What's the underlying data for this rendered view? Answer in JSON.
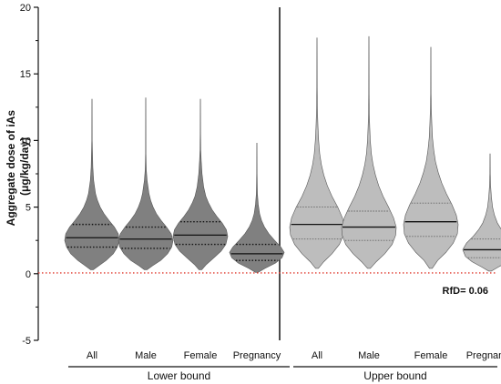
{
  "chart_data": {
    "type": "violin",
    "ylabel_lines": [
      "Aggregate dose of iAs",
      "(μg/kg/day)"
    ],
    "ylim": [
      -5,
      20
    ],
    "yticks": [
      -5,
      0,
      5,
      10,
      15,
      20
    ],
    "reference_line": {
      "y": 0.06,
      "label": "RfD= 0.06",
      "color": "#e03a2f",
      "style": "dotted"
    },
    "groups": [
      {
        "label": "Lower bound",
        "fill": "#808080",
        "categories": [
          {
            "label": "All",
            "median": 2.7,
            "q1": 2.0,
            "q3": 3.7,
            "min": 0.3,
            "max": 13.1,
            "profile": [
              [
                0.3,
                0.05
              ],
              [
                0.6,
                0.25
              ],
              [
                1.0,
                0.52
              ],
              [
                1.5,
                0.78
              ],
              [
                2.0,
                0.93
              ],
              [
                2.5,
                1.0
              ],
              [
                3.0,
                0.96
              ],
              [
                3.5,
                0.82
              ],
              [
                4.0,
                0.62
              ],
              [
                4.5,
                0.44
              ],
              [
                5.0,
                0.3
              ],
              [
                5.5,
                0.2
              ],
              [
                6.0,
                0.13
              ],
              [
                7.0,
                0.06
              ],
              [
                8.0,
                0.03
              ],
              [
                9.2,
                0.015
              ],
              [
                10.0,
                0.006
              ],
              [
                13.1,
                0.004
              ]
            ]
          },
          {
            "label": "Male",
            "median": 2.6,
            "q1": 1.9,
            "q3": 3.5,
            "min": 0.3,
            "max": 13.2,
            "profile": [
              [
                0.3,
                0.05
              ],
              [
                0.6,
                0.25
              ],
              [
                1.0,
                0.55
              ],
              [
                1.5,
                0.8
              ],
              [
                2.0,
                0.95
              ],
              [
                2.5,
                1.0
              ],
              [
                3.0,
                0.93
              ],
              [
                3.5,
                0.76
              ],
              [
                4.0,
                0.56
              ],
              [
                4.5,
                0.39
              ],
              [
                5.0,
                0.27
              ],
              [
                5.5,
                0.18
              ],
              [
                6.0,
                0.12
              ],
              [
                7.0,
                0.05
              ],
              [
                7.8,
                0.02
              ],
              [
                9.0,
                0.008
              ],
              [
                13.2,
                0.004
              ]
            ]
          },
          {
            "label": "Female",
            "median": 2.9,
            "q1": 2.2,
            "q3": 3.9,
            "min": 0.3,
            "max": 13.1,
            "profile": [
              [
                0.3,
                0.05
              ],
              [
                0.7,
                0.22
              ],
              [
                1.2,
                0.5
              ],
              [
                1.7,
                0.76
              ],
              [
                2.2,
                0.93
              ],
              [
                2.8,
                1.0
              ],
              [
                3.3,
                0.95
              ],
              [
                3.8,
                0.8
              ],
              [
                4.3,
                0.6
              ],
              [
                4.8,
                0.43
              ],
              [
                5.3,
                0.3
              ],
              [
                5.8,
                0.2
              ],
              [
                6.5,
                0.12
              ],
              [
                7.5,
                0.06
              ],
              [
                8.5,
                0.03
              ],
              [
                9.3,
                0.012
              ],
              [
                10.5,
                0.006
              ],
              [
                13.1,
                0.004
              ]
            ]
          },
          {
            "label": "Pregnancy",
            "median": 1.5,
            "q1": 1.0,
            "q3": 2.2,
            "min": 0.1,
            "max": 9.8,
            "profile": [
              [
                0.1,
                0.05
              ],
              [
                0.4,
                0.3
              ],
              [
                0.8,
                0.68
              ],
              [
                1.2,
                0.92
              ],
              [
                1.6,
                1.0
              ],
              [
                2.0,
                0.88
              ],
              [
                2.5,
                0.65
              ],
              [
                3.0,
                0.44
              ],
              [
                3.5,
                0.28
              ],
              [
                4.0,
                0.17
              ],
              [
                4.5,
                0.1
              ],
              [
                5.2,
                0.05
              ],
              [
                6.0,
                0.02
              ],
              [
                7.5,
                0.008
              ],
              [
                9.8,
                0.004
              ]
            ]
          }
        ]
      },
      {
        "label": "Upper bound",
        "fill": "#bdbdbd",
        "categories": [
          {
            "label": "All",
            "median": 3.7,
            "q1": 2.6,
            "q3": 5.0,
            "min": 0.4,
            "max": 17.7,
            "profile": [
              [
                0.4,
                0.05
              ],
              [
                0.9,
                0.25
              ],
              [
                1.5,
                0.55
              ],
              [
                2.2,
                0.82
              ],
              [
                2.9,
                0.97
              ],
              [
                3.5,
                1.0
              ],
              [
                4.2,
                0.93
              ],
              [
                5.0,
                0.76
              ],
              [
                5.8,
                0.55
              ],
              [
                6.6,
                0.38
              ],
              [
                7.4,
                0.25
              ],
              [
                8.2,
                0.16
              ],
              [
                9.0,
                0.1
              ],
              [
                10.0,
                0.06
              ],
              [
                11.0,
                0.035
              ],
              [
                12.0,
                0.02
              ],
              [
                12.6,
                0.012
              ],
              [
                14.0,
                0.006
              ],
              [
                17.7,
                0.004
              ]
            ]
          },
          {
            "label": "Male",
            "median": 3.5,
            "q1": 2.5,
            "q3": 4.7,
            "min": 0.4,
            "max": 17.8,
            "profile": [
              [
                0.4,
                0.05
              ],
              [
                0.9,
                0.27
              ],
              [
                1.5,
                0.58
              ],
              [
                2.2,
                0.85
              ],
              [
                2.9,
                0.98
              ],
              [
                3.5,
                1.0
              ],
              [
                4.2,
                0.9
              ],
              [
                5.0,
                0.72
              ],
              [
                5.8,
                0.52
              ],
              [
                6.6,
                0.36
              ],
              [
                7.4,
                0.24
              ],
              [
                8.2,
                0.15
              ],
              [
                9.0,
                0.09
              ],
              [
                10.0,
                0.05
              ],
              [
                11.0,
                0.03
              ],
              [
                12.0,
                0.015
              ],
              [
                13.5,
                0.007
              ],
              [
                17.8,
                0.004
              ]
            ]
          },
          {
            "label": "Female",
            "median": 3.9,
            "q1": 2.8,
            "q3": 5.3,
            "min": 0.4,
            "max": 17.0,
            "profile": [
              [
                0.4,
                0.05
              ],
              [
                1.0,
                0.25
              ],
              [
                1.6,
                0.55
              ],
              [
                2.3,
                0.82
              ],
              [
                3.0,
                0.97
              ],
              [
                3.7,
                1.0
              ],
              [
                4.4,
                0.93
              ],
              [
                5.2,
                0.77
              ],
              [
                6.0,
                0.57
              ],
              [
                6.8,
                0.4
              ],
              [
                7.6,
                0.27
              ],
              [
                8.4,
                0.17
              ],
              [
                9.2,
                0.11
              ],
              [
                10.2,
                0.06
              ],
              [
                11.2,
                0.035
              ],
              [
                12.4,
                0.018
              ],
              [
                13.5,
                0.008
              ],
              [
                17.0,
                0.004
              ]
            ]
          },
          {
            "label": "Pregnancy",
            "median": 1.8,
            "q1": 1.2,
            "q3": 2.6,
            "min": 0.2,
            "max": 9.0,
            "profile": [
              [
                0.2,
                0.05
              ],
              [
                0.5,
                0.3
              ],
              [
                0.9,
                0.66
              ],
              [
                1.3,
                0.9
              ],
              [
                1.8,
                1.0
              ],
              [
                2.3,
                0.86
              ],
              [
                2.8,
                0.62
              ],
              [
                3.3,
                0.42
              ],
              [
                3.8,
                0.27
              ],
              [
                4.4,
                0.16
              ],
              [
                5.0,
                0.09
              ],
              [
                5.8,
                0.045
              ],
              [
                6.6,
                0.02
              ],
              [
                7.5,
                0.008
              ],
              [
                9.0,
                0.004
              ]
            ]
          }
        ]
      }
    ]
  }
}
